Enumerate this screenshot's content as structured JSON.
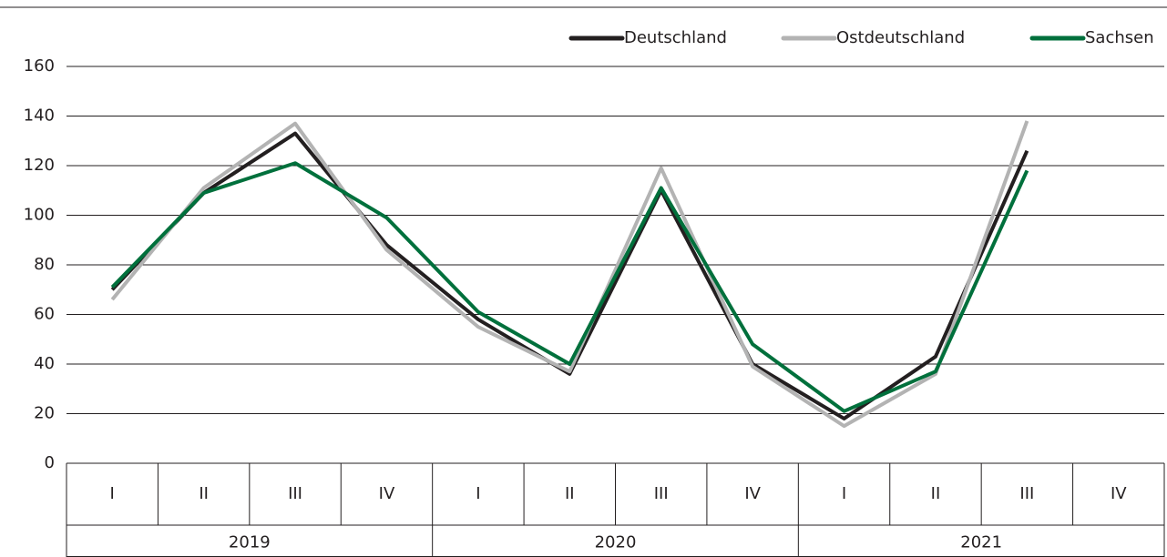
{
  "chart_data": {
    "type": "line",
    "categories": [
      "I",
      "II",
      "III",
      "IV",
      "I",
      "II",
      "III",
      "IV",
      "I",
      "II",
      "III",
      "IV"
    ],
    "groups": [
      "2019",
      "2020",
      "2021"
    ],
    "series": [
      {
        "name": "Deutschland",
        "color": "#231f20",
        "values": [
          70,
          109,
          133,
          88,
          58,
          36,
          110,
          40,
          18,
          43,
          126,
          null
        ]
      },
      {
        "name": "Ostdeutschland",
        "color": "#b3b3b3",
        "values": [
          66,
          111,
          137,
          86,
          55,
          37,
          119,
          39,
          15,
          36,
          138,
          null
        ]
      },
      {
        "name": "Sachsen",
        "color": "#00703c",
        "values": [
          71,
          109,
          121,
          99,
          61,
          40,
          111,
          48,
          21,
          37,
          118,
          null
        ]
      }
    ],
    "ylim": [
      0,
      160
    ],
    "yticks": [
      0,
      20,
      40,
      60,
      80,
      100,
      120,
      140,
      160
    ],
    "grid": true,
    "legend": "top-right"
  }
}
